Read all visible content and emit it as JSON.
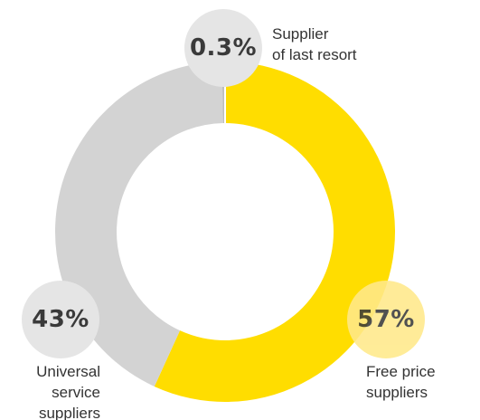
{
  "chart_data": {
    "type": "pie",
    "title": "",
    "slices": [
      {
        "label": "Free price suppliers",
        "value": 57,
        "display": "57%",
        "color": "#FFDD00"
      },
      {
        "label": "Universal service suppliers",
        "value": 43,
        "display": "43%",
        "color": "#D3D3D3"
      },
      {
        "label": "Supplier of last resort",
        "value": 0.3,
        "display": "0.3%",
        "color": "#BDBDBD"
      }
    ],
    "legend": "none"
  },
  "labels": {
    "last_resort_line1": "Supplier",
    "last_resort_line2": "of last resort",
    "universal_line1": "Universal",
    "universal_line2": "service",
    "universal_line3": "suppliers",
    "free_line1": "Free price",
    "free_line2": "suppliers"
  },
  "colors": {
    "bubble_gray": "#E5E5E5",
    "bubble_yellow": "#FFE98A",
    "text": "#333333"
  }
}
